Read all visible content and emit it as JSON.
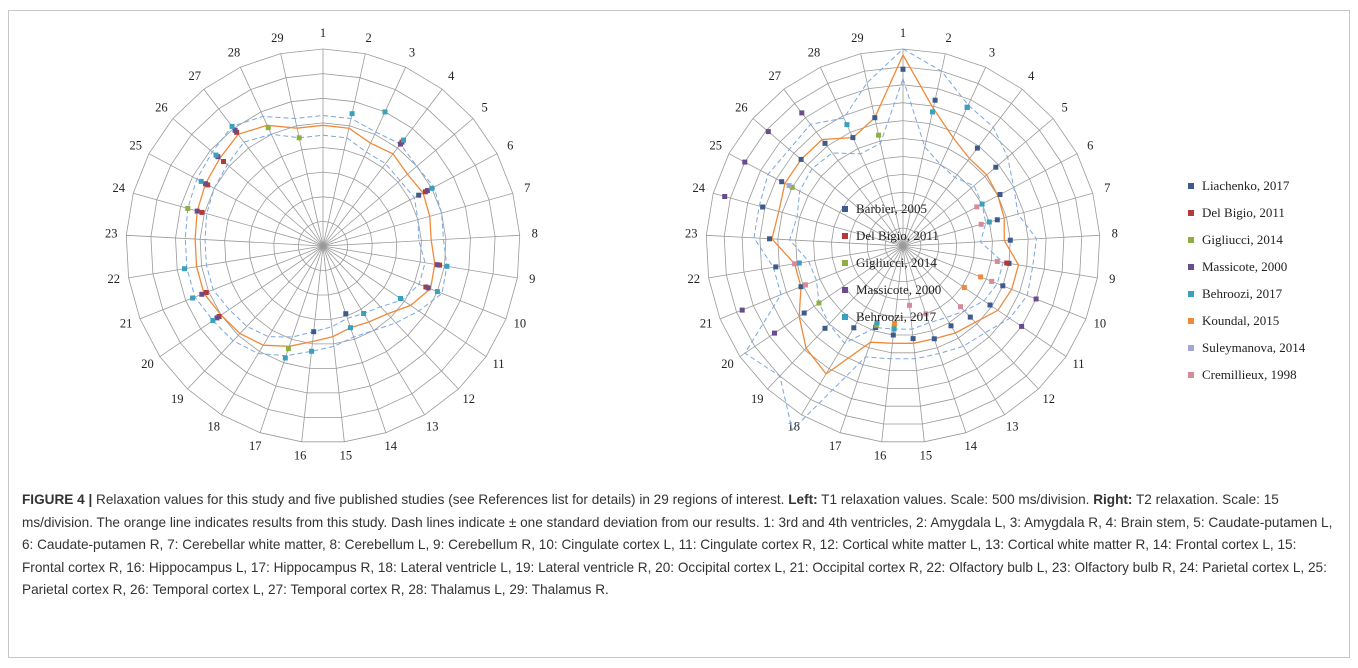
{
  "chart_data": [
    {
      "type": "radar",
      "categories": [
        "1",
        "2",
        "3",
        "4",
        "5",
        "6",
        "7",
        "8",
        "9",
        "10",
        "11",
        "12",
        "13",
        "14",
        "15",
        "16",
        "17",
        "18",
        "19",
        "20",
        "21",
        "22",
        "23",
        "24",
        "25",
        "26",
        "27",
        "28",
        "29"
      ],
      "rlim": [
        0,
        4000
      ],
      "rings": 8,
      "series": [
        {
          "name": "Barbier, 2005",
          "color": "#3d5b8c",
          "values": [
            null,
            null,
            null,
            null,
            null,
            2200,
            null,
            null,
            null,
            null,
            null,
            null,
            null,
            1450,
            null,
            1750,
            null,
            null,
            null,
            null,
            null,
            null,
            null,
            null,
            null,
            null,
            null,
            null,
            null
          ]
        },
        {
          "name": "Del Bigio, 2011",
          "color": "#b43a3a",
          "values": [
            null,
            null,
            null,
            2650,
            null,
            2350,
            null,
            null,
            2400,
            2250,
            null,
            null,
            null,
            null,
            null,
            null,
            null,
            null,
            null,
            2550,
            2550,
            null,
            null,
            2550,
            2650,
            2650,
            2900,
            null,
            null
          ]
        },
        {
          "name": "Gigliucci, 2014",
          "color": "#8db040",
          "values": [
            null,
            null,
            null,
            null,
            null,
            null,
            null,
            null,
            null,
            null,
            null,
            null,
            null,
            null,
            null,
            null,
            2200,
            null,
            null,
            null,
            null,
            null,
            null,
            2850,
            null,
            null,
            null,
            2650,
            2250
          ]
        },
        {
          "name": "Massicote, 2000",
          "color": "#6a4c8e",
          "values": [
            null,
            null,
            null,
            2600,
            null,
            2400,
            null,
            null,
            2350,
            2300,
            null,
            null,
            null,
            null,
            null,
            null,
            null,
            null,
            null,
            2600,
            2650,
            null,
            null,
            2650,
            2700,
            2800,
            2950,
            null,
            null
          ]
        },
        {
          "name": "Behroozi, 2017",
          "color": "#3ba0bd",
          "values": [
            null,
            2750,
            3000,
            2700,
            null,
            2500,
            null,
            null,
            2550,
            2500,
            1900,
            null,
            1600,
            1750,
            null,
            2150,
            2400,
            null,
            null,
            2700,
            2850,
            2850,
            null,
            null,
            2800,
            2850,
            3050,
            null,
            null
          ]
        },
        {
          "name": "",
          "color": "#f08a3a",
          "line": "solid",
          "values": [
            2450,
            2450,
            2300,
            2350,
            2250,
            2300,
            2250,
            2200,
            2300,
            2350,
            2150,
            1900,
            1800,
            1750,
            1850,
            1950,
            2150,
            2350,
            2450,
            2500,
            2600,
            2600,
            2600,
            2650,
            2700,
            2750,
            2850,
            2700,
            2450
          ]
        },
        {
          "name": "",
          "color": "#7aa7e0",
          "line": "dashed",
          "values": [
            2650,
            2650,
            2550,
            2600,
            2500,
            2550,
            2500,
            2450,
            2550,
            2600,
            2350,
            2150,
            2000,
            1950,
            2050,
            2150,
            2350,
            2550,
            2650,
            2700,
            2800,
            2800,
            2800,
            2850,
            2900,
            2950,
            3050,
            2900,
            2650
          ]
        },
        {
          "name": "",
          "color": "#7aa7e0",
          "line": "dashed",
          "values": [
            2250,
            2250,
            2100,
            2100,
            2050,
            2100,
            2000,
            1950,
            2100,
            2100,
            1950,
            1700,
            1600,
            1550,
            1650,
            1750,
            1950,
            2150,
            2250,
            2300,
            2400,
            2400,
            2400,
            2450,
            2500,
            2550,
            2650,
            2500,
            2250
          ]
        }
      ]
    },
    {
      "type": "radar",
      "categories": [
        "1",
        "2",
        "3",
        "4",
        "5",
        "6",
        "7",
        "8",
        "9",
        "10",
        "11",
        "12",
        "13",
        "14",
        "15",
        "16",
        "17",
        "18",
        "19",
        "20",
        "21",
        "22",
        "23",
        "24",
        "25",
        "26",
        "27",
        "28",
        "29"
      ],
      "rlim": [
        0,
        165
      ],
      "rings": 11,
      "series": [
        {
          "name": "Liachenko, 2017",
          "color": "#3d5b8c",
          "values": [
            148,
            125,
            128,
            103,
            102,
            92,
            82,
            90,
            90,
            90,
            88,
            82,
            78,
            82,
            78,
            75,
            72,
            80,
            95,
            100,
            92,
            108,
            112,
            122,
            115,
            112,
            108,
            100,
            110
          ]
        },
        {
          "name": "Del Bigio, 2011",
          "color": "#b43a3a",
          "values": [
            null,
            null,
            null,
            null,
            null,
            null,
            null,
            null,
            88,
            null,
            null,
            null,
            null,
            null,
            null,
            null,
            null,
            null,
            null,
            null,
            null,
            null,
            null,
            null,
            null,
            null,
            null,
            null,
            null
          ]
        },
        {
          "name": "Gigliucci, 2014",
          "color": "#8db040",
          "values": [
            null,
            null,
            null,
            null,
            null,
            null,
            null,
            null,
            null,
            null,
            null,
            null,
            null,
            null,
            null,
            68,
            70,
            null,
            null,
            85,
            88,
            null,
            null,
            null,
            105,
            null,
            null,
            null,
            95
          ]
        },
        {
          "name": "Massicote, 2000",
          "color": "#6a4c8e",
          "values": [
            null,
            null,
            null,
            null,
            null,
            null,
            null,
            null,
            null,
            120,
            120,
            null,
            null,
            null,
            null,
            null,
            null,
            null,
            null,
            130,
            145,
            null,
            null,
            155,
            150,
            148,
            140,
            null,
            null
          ]
        },
        {
          "name": "Behroozi, 2017",
          "color": "#3ba0bd",
          "values": [
            null,
            115,
            128,
            null,
            null,
            75,
            75,
            null,
            null,
            null,
            null,
            null,
            null,
            null,
            null,
            70,
            68,
            null,
            null,
            null,
            null,
            88,
            null,
            null,
            null,
            null,
            null,
            112,
            null
          ]
        },
        {
          "name": "Koundal, 2015",
          "color": "#f08a3a",
          "values": [
            null,
            null,
            null,
            null,
            null,
            null,
            null,
            null,
            null,
            70,
            62,
            null,
            null,
            null,
            null,
            65,
            null,
            null,
            null,
            null,
            null,
            null,
            null,
            null,
            null,
            null,
            null,
            null,
            null
          ]
        },
        {
          "name": "Suleymanova, 2014",
          "color": "#9fa8d8",
          "values": [
            null,
            null,
            null,
            null,
            null,
            null,
            null,
            null,
            null,
            null,
            null,
            null,
            null,
            null,
            null,
            null,
            null,
            null,
            null,
            null,
            null,
            null,
            null,
            null,
            108,
            null,
            null,
            null,
            null
          ]
        },
        {
          "name": "Cremillieux, 1998",
          "color": "#d68a9a",
          "values": [
            null,
            null,
            null,
            null,
            null,
            70,
            68,
            null,
            80,
            80,
            null,
            70,
            null,
            60,
            50,
            null,
            null,
            null,
            null,
            null,
            88,
            92,
            null,
            null,
            null,
            null,
            null,
            null,
            null
          ]
        },
        {
          "name": "",
          "color": "#f08a3a",
          "line": "solid",
          "values": [
            160,
            118,
            100,
            92,
            92,
            90,
            88,
            85,
            98,
            98,
            96,
            88,
            85,
            82,
            82,
            82,
            85,
            125,
            118,
            105,
            92,
            92,
            110,
            108,
            112,
            112,
            112,
            100,
            110
          ]
        },
        {
          "name": "",
          "color": "#7aa7e0",
          "line": "dashed",
          "values": [
            165,
            150,
            130,
            125,
            115,
            105,
            100,
            112,
            110,
            112,
            108,
            100,
            98,
            95,
            95,
            95,
            98,
            180,
            150,
            160,
            110,
            110,
            125,
            125,
            128,
            125,
            128,
            118,
            140
          ]
        },
        {
          "name": "",
          "color": "#7aa7e0",
          "line": "dashed",
          "values": [
            140,
            85,
            75,
            72,
            78,
            75,
            72,
            65,
            85,
            85,
            82,
            75,
            70,
            68,
            70,
            70,
            72,
            95,
            90,
            85,
            78,
            80,
            95,
            92,
            98,
            100,
            98,
            85,
            88
          ]
        }
      ]
    }
  ],
  "caption": {
    "label": "FIGURE 4 |",
    "intro": " Relaxation values for this study and five published studies (see References list for details) in 29 regions of interest. ",
    "left_label": "Left:",
    "left_text": " T1 relaxation values. Scale: 500 ms/division. ",
    "right_label": "Right:",
    "right_text": " T2 relaxation. Scale: 15 ms/division. The orange line indicates results from this study. Dash lines indicate ± one standard deviation from our results. 1: 3rd and 4th ventricles, 2: Amygdala L, 3: Amygdala R, 4: Brain stem, 5: Caudate-putamen L, 6: Caudate-putamen R, 7: Cerebellar white matter, 8: Cerebellum L, 9: Cerebellum R, 10: Cingulate cortex L, 11: Cingulate cortex R, 12: Cortical white matter L, 13: Cortical white matter R, 14: Frontal cortex L, 15: Frontal cortex R, 16: Hippocampus L, 17: Hippocampus R, 18: Lateral ventricle L, 19: Lateral ventricle R, 20: Occipital cortex L, 21: Occipital cortex R, 22: Olfactory bulb L, 23: Olfactory bulb R, 24: Parietal cortex L, 25: Parietal cortex R, 26: Temporal cortex L, 27: Temporal cortex R, 28: Thalamus L, 29: Thalamus R."
  }
}
